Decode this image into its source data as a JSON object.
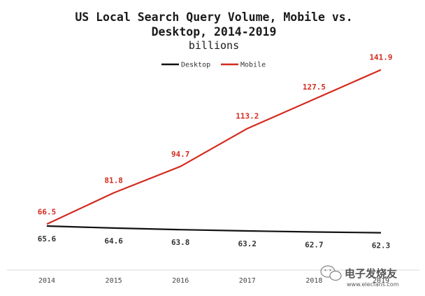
{
  "chart_data": {
    "type": "line",
    "title_line1": "US Local Search Query Volume, Mobile vs.",
    "title_line2": "Desktop, 2014-2019",
    "subtitle": "billions",
    "xlabel": "",
    "ylabel": "",
    "x": [
      "2014",
      "2015",
      "2016",
      "2017",
      "2018",
      "2019"
    ],
    "ylim": [
      55,
      150
    ],
    "grid": false,
    "legend_position": "top-center",
    "series": [
      {
        "name": "Desktop",
        "color": "#111111",
        "values": [
          65.6,
          64.6,
          63.8,
          63.2,
          62.7,
          62.3
        ],
        "labels": [
          "65.6",
          "64.6",
          "63.8",
          "63.2",
          "62.7",
          "62.3"
        ]
      },
      {
        "name": "Mobile",
        "color": "#d42a1e",
        "values": [
          66.5,
          81.8,
          94.7,
          113.2,
          127.5,
          141.9
        ],
        "labels": [
          "66.5",
          "81.8",
          "94.7",
          "113.2",
          "127.5",
          "141.9"
        ]
      }
    ]
  },
  "watermark": {
    "main": "电子发烧友",
    "url": "www.elecfans.com",
    "icon": "wechat-logo-icon"
  }
}
